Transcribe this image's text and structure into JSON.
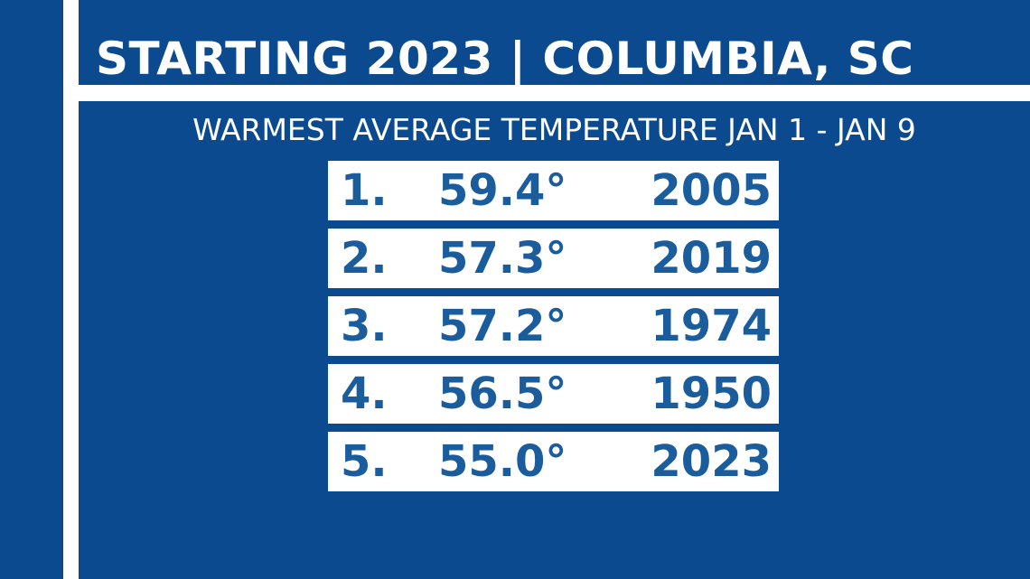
{
  "header": {
    "title": "STARTING 2023 | COLUMBIA, SC",
    "subtitle": "WARMEST AVERAGE TEMPERATURE JAN 1 - JAN 9"
  },
  "ranking": [
    {
      "rank": "1.",
      "temp": "59.4°",
      "year": "2005"
    },
    {
      "rank": "2.",
      "temp": "57.3°",
      "year": "2019"
    },
    {
      "rank": "3.",
      "temp": "57.2°",
      "year": "1974"
    },
    {
      "rank": "4.",
      "temp": "56.5°",
      "year": "1950"
    },
    {
      "rank": "5.",
      "temp": "55.0°",
      "year": "2023"
    }
  ],
  "colors": {
    "background": "#0b4a8f",
    "row_background": "#ffffff",
    "row_text": "#1a5c9c",
    "header_text": "#ffffff"
  }
}
